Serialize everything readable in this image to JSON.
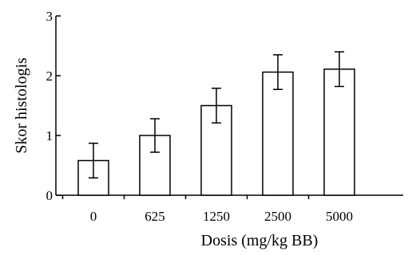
{
  "chart_data": {
    "type": "bar",
    "xlabel": "Dosis (mg/kg BB)",
    "ylabel": "Skor histologis",
    "categories": [
      "0",
      "625",
      "1250",
      "2500",
      "5000"
    ],
    "values": [
      0.58,
      1.0,
      1.5,
      2.06,
      2.11
    ],
    "errors": [
      0.29,
      0.28,
      0.29,
      0.29,
      0.29
    ],
    "ylim": [
      0,
      3
    ],
    "yticks": [
      "0",
      "1",
      "2",
      "3"
    ],
    "grid": false,
    "bar_fill": "#ffffff",
    "bar_stroke": "#000000"
  }
}
